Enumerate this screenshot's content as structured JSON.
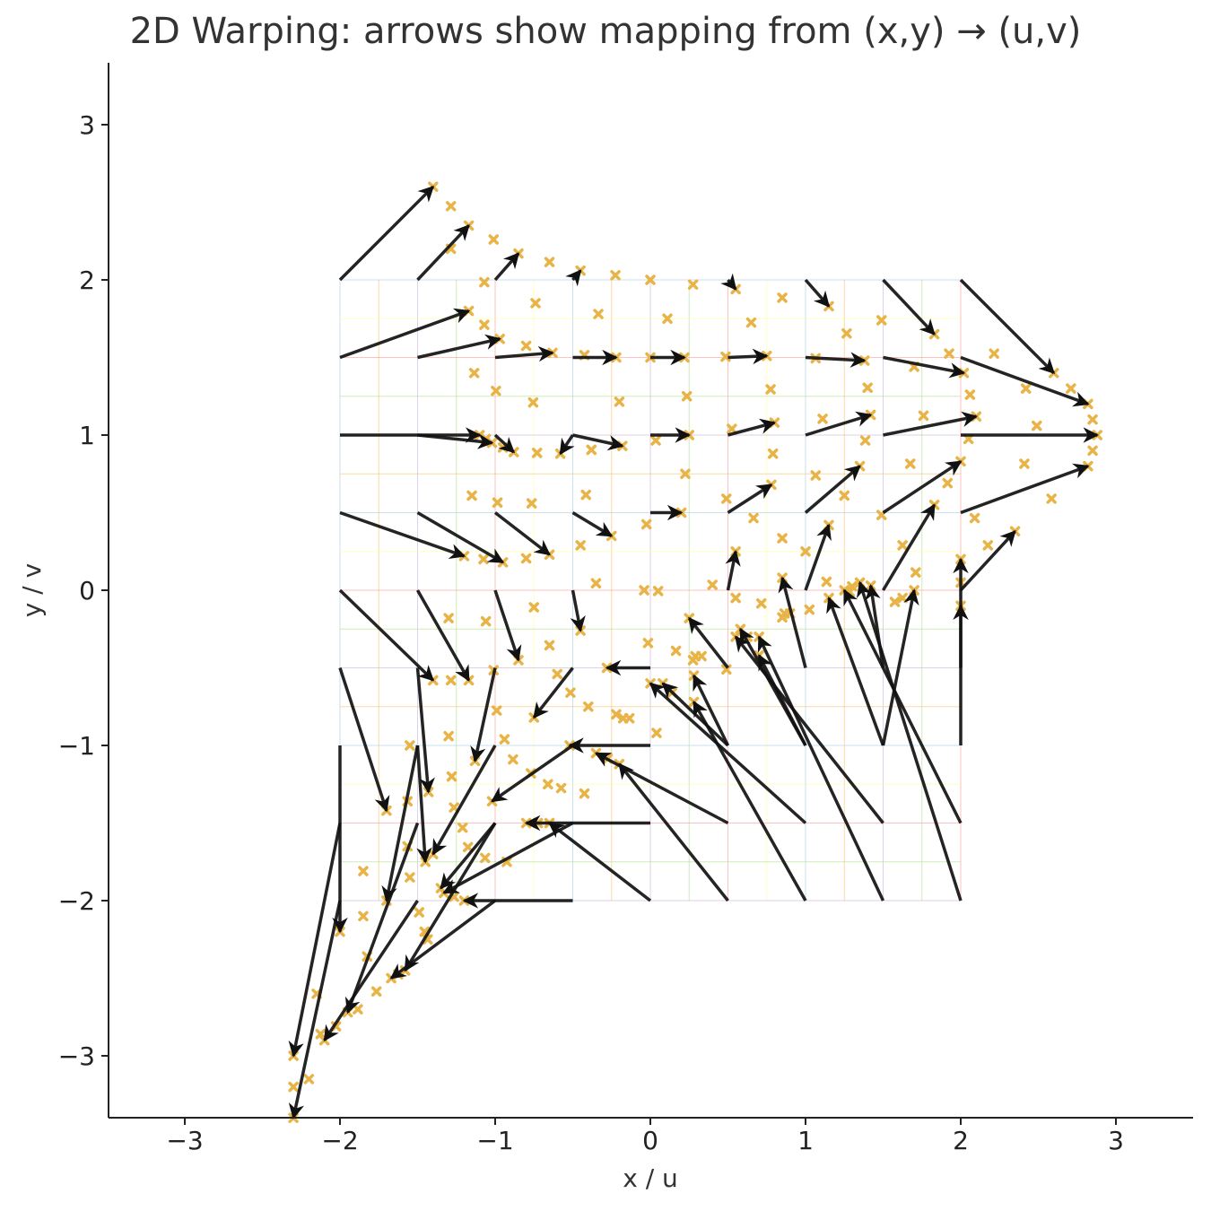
{
  "chart_data": {
    "type": "quiver",
    "title": "2D Warping: arrows show mapping from (x,y) → (u,v)",
    "xlabel": "x / u",
    "ylabel": "y / v",
    "xlim": [
      -3.5,
      3.5
    ],
    "ylim": [
      -3.4,
      3.4
    ],
    "xticks": [
      -3,
      -2,
      -1,
      0,
      1,
      2,
      3
    ],
    "yticks": [
      -3,
      -2,
      -1,
      0,
      1,
      2,
      3
    ],
    "tick_labels_x": [
      "−3",
      "−2",
      "−1",
      "0",
      "1",
      "2",
      "3"
    ],
    "tick_labels_y": [
      "−3",
      "−2",
      "−1",
      "0",
      "1",
      "2",
      "3"
    ],
    "grid_domain": {
      "x": [
        -2,
        2
      ],
      "y": [
        -2,
        2
      ],
      "step": 0.25
    },
    "arrow_color": "#111111",
    "marker_color": "#e8b447",
    "arrows": [
      {
        "x": -2,
        "y": 2,
        "u": -1.4,
        "v": 2.6
      },
      {
        "x": -1.5,
        "y": 2,
        "u": -1.17,
        "v": 2.35
      },
      {
        "x": -1,
        "y": 2,
        "u": -0.85,
        "v": 2.17
      },
      {
        "x": -0.5,
        "y": 2,
        "u": -0.45,
        "v": 2.06
      },
      {
        "x": 0,
        "y": 2,
        "u": 0,
        "v": 2
      },
      {
        "x": 0.5,
        "y": 2,
        "u": 0.55,
        "v": 1.94
      },
      {
        "x": 1,
        "y": 2,
        "u": 1.15,
        "v": 1.83
      },
      {
        "x": 1.5,
        "y": 2,
        "u": 1.83,
        "v": 1.65
      },
      {
        "x": 2,
        "y": 2,
        "u": 2.6,
        "v": 1.4
      },
      {
        "x": -2,
        "y": 1.5,
        "u": -1.17,
        "v": 1.8
      },
      {
        "x": -1.5,
        "y": 1.5,
        "u": -0.97,
        "v": 1.62
      },
      {
        "x": -1,
        "y": 1.5,
        "u": -0.63,
        "v": 1.53
      },
      {
        "x": -0.5,
        "y": 1.5,
        "u": -0.22,
        "v": 1.5
      },
      {
        "x": 0,
        "y": 1.5,
        "u": 0.22,
        "v": 1.5
      },
      {
        "x": 0.5,
        "y": 1.5,
        "u": 0.75,
        "v": 1.51
      },
      {
        "x": 1,
        "y": 1.5,
        "u": 1.38,
        "v": 1.48
      },
      {
        "x": 1.5,
        "y": 1.5,
        "u": 2.02,
        "v": 1.4
      },
      {
        "x": 2,
        "y": 1.5,
        "u": 2.82,
        "v": 1.2
      },
      {
        "x": -2,
        "y": 1,
        "u": -1.1,
        "v": 1.0
      },
      {
        "x": -1.5,
        "y": 1,
        "u": -1.02,
        "v": 0.95
      },
      {
        "x": -1,
        "y": 1,
        "u": -0.88,
        "v": 0.89
      },
      {
        "x": -0.5,
        "y": 1,
        "u": -0.58,
        "v": 0.88
      },
      {
        "x": -0.5,
        "y": 1,
        "u": -0.18,
        "v": 0.93
      },
      {
        "x": 0,
        "y": 1,
        "u": 0.25,
        "v": 1.0
      },
      {
        "x": 0.5,
        "y": 1,
        "u": 0.8,
        "v": 1.08
      },
      {
        "x": 1,
        "y": 1,
        "u": 1.42,
        "v": 1.13
      },
      {
        "x": 1.5,
        "y": 1,
        "u": 2.1,
        "v": 1.12
      },
      {
        "x": 2,
        "y": 1,
        "u": 2.88,
        "v": 1.0
      },
      {
        "x": -2,
        "y": 0.5,
        "u": -1.2,
        "v": 0.22
      },
      {
        "x": -1.5,
        "y": 0.5,
        "u": -0.95,
        "v": 0.18
      },
      {
        "x": -1,
        "y": 0.5,
        "u": -0.65,
        "v": 0.23
      },
      {
        "x": -0.5,
        "y": 0.5,
        "u": -0.25,
        "v": 0.35
      },
      {
        "x": 0,
        "y": 0.5,
        "u": 0.2,
        "v": 0.5
      },
      {
        "x": 0.5,
        "y": 0.5,
        "u": 0.78,
        "v": 0.68
      },
      {
        "x": 1,
        "y": 0.5,
        "u": 1.35,
        "v": 0.8
      },
      {
        "x": 1.5,
        "y": 0.5,
        "u": 2.0,
        "v": 0.83
      },
      {
        "x": 2,
        "y": 0.5,
        "u": 2.82,
        "v": 0.8
      },
      {
        "x": -2,
        "y": 0,
        "u": -1.4,
        "v": -0.58
      },
      {
        "x": -1.5,
        "y": 0,
        "u": -1.17,
        "v": -0.58
      },
      {
        "x": -1,
        "y": 0,
        "u": -0.85,
        "v": -0.45
      },
      {
        "x": -0.5,
        "y": 0,
        "u": -0.45,
        "v": -0.26
      },
      {
        "x": 0.5,
        "y": 0,
        "u": 0.55,
        "v": 0.25
      },
      {
        "x": 1,
        "y": 0,
        "u": 1.15,
        "v": 0.42
      },
      {
        "x": 1.5,
        "y": 0,
        "u": 1.83,
        "v": 0.55
      },
      {
        "x": 2,
        "y": 0,
        "u": 2.35,
        "v": 0.38
      },
      {
        "x": -2,
        "y": -0.5,
        "u": -1.7,
        "v": -1.42
      },
      {
        "x": -1.5,
        "y": -0.5,
        "u": -1.43,
        "v": -1.3
      },
      {
        "x": -1,
        "y": -0.5,
        "u": -1.13,
        "v": -1.1
      },
      {
        "x": -0.5,
        "y": -0.5,
        "u": -0.75,
        "v": -0.82
      },
      {
        "x": 0,
        "y": -0.5,
        "u": -0.28,
        "v": -0.5
      },
      {
        "x": 0.5,
        "y": -0.5,
        "u": 0.25,
        "v": -0.18
      },
      {
        "x": 1,
        "y": -0.5,
        "u": 0.85,
        "v": 0.08
      },
      {
        "x": 1.5,
        "y": -0.5,
        "u": 1.42,
        "v": 0.03
      },
      {
        "x": 2,
        "y": -0.5,
        "u": 2.0,
        "v": 0.2
      },
      {
        "x": -2,
        "y": -1,
        "u": -2.0,
        "v": -2.2
      },
      {
        "x": -1.5,
        "y": -1,
        "u": -1.7,
        "v": -2.0
      },
      {
        "x": -1,
        "y": -1,
        "u": -1.4,
        "v": -1.7
      },
      {
        "x": -0.5,
        "y": -1,
        "u": -1.02,
        "v": -1.36
      },
      {
        "x": 0,
        "y": -1,
        "u": -0.52,
        "v": -1.0
      },
      {
        "x": 0.5,
        "y": -1,
        "u": 0.08,
        "v": -0.6
      },
      {
        "x": 1,
        "y": -1,
        "u": 0.58,
        "v": -0.25
      },
      {
        "x": 1.5,
        "y": -1,
        "u": 1.15,
        "v": -0.05
      },
      {
        "x": 2,
        "y": -1,
        "u": 2.0,
        "v": -0.1
      },
      {
        "x": -2,
        "y": -1.5,
        "u": -2.3,
        "v": -3.0
      },
      {
        "x": -1.5,
        "y": -1.5,
        "u": -1.95,
        "v": -2.72
      },
      {
        "x": -1,
        "y": -1.5,
        "u": -1.58,
        "v": -2.45
      },
      {
        "x": -0.5,
        "y": -1.5,
        "u": -1.33,
        "v": -1.95
      },
      {
        "x": 0,
        "y": -1.5,
        "u": -0.8,
        "v": -1.5
      },
      {
        "x": 0.5,
        "y": -1.5,
        "u": -0.35,
        "v": -1.05
      },
      {
        "x": 1,
        "y": -1.5,
        "u": 0.0,
        "v": -0.6
      },
      {
        "x": 1.5,
        "y": -1.5,
        "u": 0.55,
        "v": -0.3
      },
      {
        "x": 2,
        "y": -1.5,
        "u": 1.25,
        "v": 0.0
      },
      {
        "x": -2,
        "y": -2,
        "u": -2.3,
        "v": -3.4
      },
      {
        "x": -1.5,
        "y": -2,
        "u": -2.1,
        "v": -2.9
      },
      {
        "x": -1,
        "y": -2,
        "u": -1.67,
        "v": -2.5
      },
      {
        "x": -0.5,
        "y": -2,
        "u": -1.2,
        "v": -2.0
      },
      {
        "x": 0,
        "y": -2,
        "u": -0.65,
        "v": -1.5
      },
      {
        "x": 0.5,
        "y": -2,
        "u": -0.2,
        "v": -1.12
      },
      {
        "x": 1,
        "y": -2,
        "u": 0.28,
        "v": -0.72
      },
      {
        "x": 1.5,
        "y": -2,
        "u": 0.7,
        "v": -0.3
      },
      {
        "x": 2,
        "y": -2,
        "u": 1.35,
        "v": 0.05
      }
    ],
    "extra_arrows": [
      {
        "x": -1.5,
        "y": -1,
        "u": -1.45,
        "v": -1.75
      },
      {
        "x": -1,
        "y": -1.5,
        "u": -1.35,
        "v": -1.92
      },
      {
        "x": 0.5,
        "y": -1,
        "u": 0.28,
        "v": -0.55
      },
      {
        "x": 1,
        "y": -1,
        "u": 0.7,
        "v": -0.42
      },
      {
        "x": 1.5,
        "y": -1,
        "u": 1.7,
        "v": 0.0
      }
    ]
  }
}
